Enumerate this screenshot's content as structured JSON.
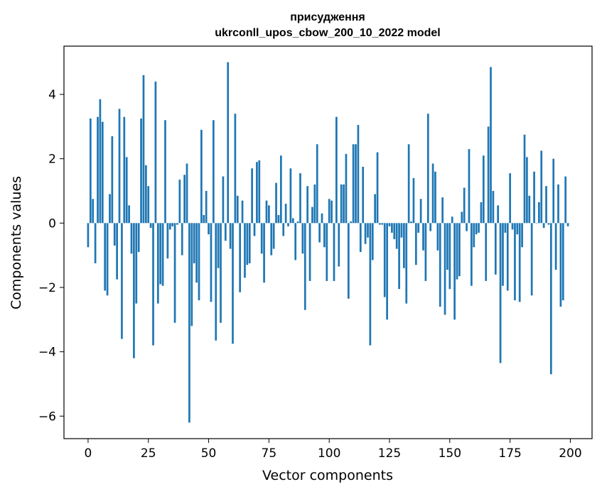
{
  "chart_data": {
    "type": "bar",
    "title": "присудження",
    "subtitle": "ukrconll_upos_cbow_200_10_2022 model",
    "xlabel": "Vector components",
    "ylabel": "Components values",
    "xlim": [
      -10,
      209
    ],
    "ylim": [
      -6.7,
      5.5
    ],
    "xticks": [
      0,
      25,
      50,
      75,
      100,
      125,
      150,
      175,
      200
    ],
    "yticks": [
      -6,
      -4,
      -2,
      0,
      2,
      4
    ],
    "xtick_labels": [
      "0",
      "25",
      "50",
      "75",
      "100",
      "125",
      "150",
      "175",
      "200"
    ],
    "ytick_labels": [
      "−6",
      "−4",
      "−2",
      "0",
      "2",
      "4"
    ],
    "grid": false,
    "bar_color": "#1f77b4",
    "x": [
      0,
      1,
      2,
      3,
      4,
      5,
      6,
      7,
      8,
      9,
      10,
      11,
      12,
      13,
      14,
      15,
      16,
      17,
      18,
      19,
      20,
      21,
      22,
      23,
      24,
      25,
      26,
      27,
      28,
      29,
      30,
      31,
      32,
      33,
      34,
      35,
      36,
      37,
      38,
      39,
      40,
      41,
      42,
      43,
      44,
      45,
      46,
      47,
      48,
      49,
      50,
      51,
      52,
      53,
      54,
      55,
      56,
      57,
      58,
      59,
      60,
      61,
      62,
      63,
      64,
      65,
      66,
      67,
      68,
      69,
      70,
      71,
      72,
      73,
      74,
      75,
      76,
      77,
      78,
      79,
      80,
      81,
      82,
      83,
      84,
      85,
      86,
      87,
      88,
      89,
      90,
      91,
      92,
      93,
      94,
      95,
      96,
      97,
      98,
      99,
      100,
      101,
      102,
      103,
      104,
      105,
      106,
      107,
      108,
      109,
      110,
      111,
      112,
      113,
      114,
      115,
      116,
      117,
      118,
      119,
      120,
      121,
      122,
      123,
      124,
      125,
      126,
      127,
      128,
      129,
      130,
      131,
      132,
      133,
      134,
      135,
      136,
      137,
      138,
      139,
      140,
      141,
      142,
      143,
      144,
      145,
      146,
      147,
      148,
      149,
      150,
      151,
      152,
      153,
      154,
      155,
      156,
      157,
      158,
      159,
      160,
      161,
      162,
      163,
      164,
      165,
      166,
      167,
      168,
      169,
      170,
      171,
      172,
      173,
      174,
      175,
      176,
      177,
      178,
      179,
      180,
      181,
      182,
      183,
      184,
      185,
      186,
      187,
      188,
      189,
      190,
      191,
      192,
      193,
      194,
      195,
      196,
      197,
      198,
      199
    ],
    "values": [
      -0.75,
      3.25,
      0.75,
      -1.25,
      3.3,
      3.85,
      3.15,
      -2.1,
      -2.25,
      0.9,
      2.7,
      -0.7,
      -1.75,
      3.55,
      -3.6,
      3.3,
      2.05,
      0.55,
      -0.95,
      -4.2,
      -2.5,
      -0.9,
      3.25,
      4.6,
      1.8,
      1.15,
      -0.15,
      -3.8,
      4.4,
      -2.5,
      -1.9,
      -1.95,
      3.2,
      -1.1,
      -0.2,
      -0.1,
      -3.1,
      -0.05,
      1.35,
      -1.0,
      1.5,
      1.85,
      -6.2,
      -3.2,
      -1.25,
      -1.85,
      -2.4,
      2.9,
      0.25,
      1.0,
      -0.35,
      -2.45,
      3.2,
      -3.65,
      -1.4,
      -3.1,
      1.45,
      -0.55,
      5.0,
      -0.8,
      -3.75,
      3.4,
      0.85,
      -2.15,
      0.7,
      -1.7,
      -1.3,
      -1.25,
      1.7,
      -0.4,
      1.9,
      1.95,
      -0.95,
      -1.85,
      0.7,
      0.55,
      -1.0,
      -0.8,
      1.25,
      0.25,
      2.1,
      -0.4,
      0.6,
      -0.1,
      1.7,
      0.15,
      -1.15,
      0.05,
      1.55,
      -0.95,
      -2.7,
      1.15,
      -1.8,
      0.5,
      1.2,
      2.45,
      -0.6,
      0.3,
      -0.75,
      -1.8,
      0.75,
      0.7,
      -1.8,
      3.3,
      -1.35,
      1.2,
      1.2,
      2.15,
      -2.35,
      0.05,
      2.45,
      2.45,
      3.05,
      -0.9,
      1.75,
      -0.65,
      -0.45,
      -3.8,
      -1.15,
      0.9,
      2.2,
      -0.05,
      -0.05,
      -2.3,
      -3.0,
      -0.1,
      -0.3,
      -0.5,
      -0.8,
      -2.05,
      -0.45,
      -1.4,
      -2.5,
      2.45,
      0.05,
      1.4,
      -1.3,
      -0.3,
      0.75,
      -0.85,
      -1.8,
      3.4,
      -0.25,
      1.85,
      1.6,
      -0.85,
      -2.6,
      0.8,
      -2.85,
      -1.45,
      -2.05,
      0.2,
      -3.0,
      -1.75,
      -1.65,
      0.35,
      1.1,
      -0.25,
      2.3,
      -1.95,
      -0.75,
      -0.35,
      -0.3,
      0.65,
      2.1,
      -1.8,
      3.0,
      4.85,
      1.0,
      -1.6,
      0.55,
      -4.35,
      -1.95,
      -0.3,
      -2.1,
      1.55,
      -0.2,
      -2.4,
      -0.35,
      -2.45,
      -0.75,
      2.75,
      2.05,
      0.85,
      -2.25,
      1.6,
      0.0,
      0.65,
      2.25,
      -0.15,
      1.15,
      -0.05,
      -4.7,
      2.0,
      -1.45,
      1.2,
      -2.6,
      -2.4,
      1.45,
      -0.1
    ]
  }
}
